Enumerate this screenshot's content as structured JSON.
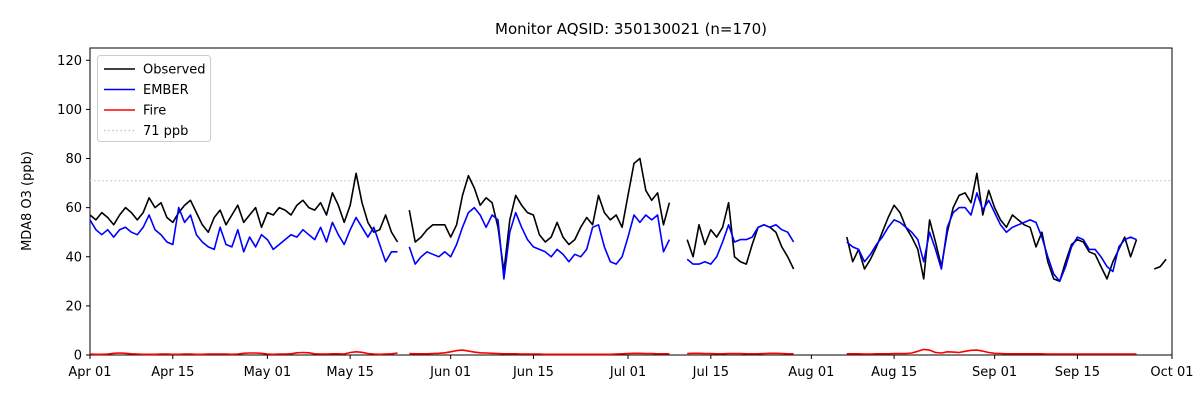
{
  "chart_data": {
    "type": "line",
    "title": "Monitor AQSID: 350130021 (n=170)",
    "xlabel": "",
    "ylabel": "MDA8 O3 (ppb)",
    "ylim": [
      0,
      125
    ],
    "yticks": [
      0,
      20,
      40,
      60,
      80,
      100,
      120
    ],
    "xlim_days": [
      0,
      183
    ],
    "xtick_labels": [
      "Apr 01",
      "Apr 15",
      "May 01",
      "May 15",
      "Jun 01",
      "Jun 15",
      "Jul 01",
      "Jul 15",
      "Aug 01",
      "Aug 15",
      "Sep 01",
      "Sep 15",
      "Oct 01"
    ],
    "xtick_days": [
      0,
      14,
      30,
      44,
      61,
      75,
      91,
      105,
      122,
      136,
      153,
      167,
      183
    ],
    "grid": false,
    "reference_line": {
      "label": "71 ppb",
      "value": 71,
      "color": "#c8c8c8",
      "style": "dotted"
    },
    "legend": {
      "position": "upper-left",
      "border_color": "#cccccc",
      "items": [
        {
          "label": "Observed",
          "color": "#000000",
          "style": "solid"
        },
        {
          "label": "EMBER",
          "color": "#0000ff",
          "style": "solid"
        },
        {
          "label": "Fire",
          "color": "#ff0000",
          "style": "solid"
        },
        {
          "label": "71 ppb",
          "color": "#c8c8c8",
          "style": "dotted"
        }
      ]
    },
    "x_start_date": "Apr 01",
    "x_end_date": "Oct 01",
    "n_points": 170,
    "series": [
      {
        "name": "Observed",
        "color": "#000000",
        "values": [
          57,
          55,
          58,
          56,
          53,
          57,
          60,
          58,
          55,
          58,
          64,
          60,
          62,
          56,
          54,
          58,
          61,
          63,
          58,
          53,
          50,
          56,
          59,
          53,
          57,
          61,
          54,
          57,
          60,
          52,
          58,
          57,
          60,
          59,
          57,
          61,
          63,
          60,
          59,
          62,
          57,
          66,
          61,
          54,
          61,
          74,
          62,
          54,
          50,
          51,
          57,
          50,
          46,
          null,
          59,
          46,
          48,
          51,
          53,
          53,
          53,
          48,
          53,
          65,
          73,
          68,
          61,
          64,
          62,
          52,
          34,
          55,
          65,
          61,
          58,
          57,
          49,
          46,
          48,
          54,
          48,
          45,
          47,
          52,
          56,
          53,
          65,
          58,
          55,
          57,
          52,
          65,
          78,
          80,
          67,
          63,
          66,
          53,
          62,
          null,
          null,
          47,
          40,
          53,
          45,
          51,
          48,
          52,
          62,
          40,
          38,
          37,
          45,
          52,
          53,
          52,
          50,
          44,
          40,
          35,
          null,
          null,
          null,
          null,
          null,
          null,
          null,
          null,
          48,
          38,
          43,
          35,
          39,
          44,
          50,
          56,
          61,
          58,
          52,
          48,
          43,
          31,
          55,
          46,
          36,
          50,
          60,
          65,
          66,
          62,
          74,
          57,
          67,
          60,
          55,
          52,
          57,
          55,
          53,
          52,
          44,
          50,
          38,
          31,
          30,
          38,
          45,
          47,
          46,
          42,
          41,
          36,
          31,
          38,
          43,
          48,
          40,
          47,
          null,
          null,
          35,
          36,
          39
        ]
      },
      {
        "name": "EMBER",
        "color": "#0000ff",
        "values": [
          55,
          51,
          49,
          51,
          48,
          51,
          52,
          50,
          49,
          52,
          57,
          51,
          49,
          46,
          45,
          60,
          54,
          57,
          49,
          46,
          44,
          43,
          52,
          45,
          44,
          51,
          42,
          48,
          44,
          49,
          47,
          43,
          45,
          47,
          49,
          48,
          51,
          49,
          47,
          52,
          46,
          54,
          49,
          45,
          51,
          56,
          52,
          48,
          52,
          45,
          38,
          42,
          42,
          null,
          44,
          37,
          40,
          42,
          41,
          40,
          42,
          40,
          45,
          52,
          58,
          60,
          57,
          52,
          57,
          55,
          31,
          50,
          58,
          52,
          47,
          44,
          43,
          42,
          40,
          43,
          41,
          38,
          41,
          40,
          43,
          52,
          53,
          44,
          38,
          37,
          40,
          48,
          57,
          54,
          57,
          55,
          57,
          42,
          47,
          null,
          null,
          39,
          37,
          37,
          38,
          37,
          40,
          46,
          53,
          46,
          47,
          47,
          48,
          52,
          53,
          52,
          53,
          51,
          50,
          46,
          null,
          null,
          null,
          null,
          null,
          null,
          null,
          null,
          46,
          44,
          43,
          38,
          41,
          45,
          48,
          52,
          55,
          54,
          52,
          50,
          47,
          38,
          50,
          43,
          35,
          52,
          58,
          60,
          60,
          57,
          66,
          59,
          63,
          58,
          53,
          50,
          52,
          53,
          54,
          55,
          54,
          48,
          40,
          33,
          30,
          36,
          44,
          48,
          47,
          43,
          43,
          40,
          36,
          34,
          44,
          47,
          48,
          47,
          null,
          null,
          null,
          null,
          null
        ]
      },
      {
        "name": "Fire",
        "color": "#ff0000",
        "values": [
          0.4,
          0.3,
          0.3,
          0.4,
          0.7,
          0.8,
          0.7,
          0.5,
          0.4,
          0.3,
          0.3,
          0.3,
          0.4,
          0.4,
          0.3,
          0.3,
          0.4,
          0.4,
          0.3,
          0.3,
          0.4,
          0.4,
          0.4,
          0.4,
          0.3,
          0.4,
          0.7,
          0.8,
          0.8,
          0.7,
          0.4,
          0.3,
          0.4,
          0.4,
          0.5,
          0.9,
          1.0,
          0.9,
          0.5,
          0.4,
          0.4,
          0.5,
          0.5,
          0.4,
          1.0,
          1.3,
          1.1,
          0.6,
          0.4,
          0.3,
          0.4,
          0.5,
          0.8,
          null,
          0.6,
          0.5,
          0.5,
          0.5,
          0.6,
          0.7,
          0.9,
          1.3,
          1.8,
          2.0,
          1.6,
          1.2,
          0.9,
          0.8,
          0.7,
          0.6,
          0.5,
          0.5,
          0.5,
          0.4,
          0.4,
          0.4,
          0.4,
          0.3,
          0.3,
          0.3,
          0.3,
          0.3,
          0.3,
          0.3,
          0.3,
          0.3,
          0.3,
          0.3,
          0.3,
          0.4,
          0.5,
          0.6,
          0.7,
          0.7,
          0.6,
          0.6,
          0.5,
          0.5,
          0.5,
          null,
          null,
          0.6,
          0.7,
          0.7,
          0.6,
          0.6,
          0.5,
          0.5,
          0.6,
          0.6,
          0.6,
          0.5,
          0.5,
          0.5,
          0.6,
          0.7,
          0.7,
          0.6,
          0.5,
          0.5,
          null,
          null,
          null,
          null,
          null,
          null,
          null,
          null,
          0.5,
          0.5,
          0.5,
          0.4,
          0.4,
          0.5,
          0.5,
          0.5,
          0.6,
          0.6,
          0.6,
          0.8,
          1.5,
          2.3,
          2.0,
          1.0,
          0.8,
          1.3,
          1.2,
          1.0,
          1.5,
          1.9,
          2.0,
          1.6,
          1.0,
          0.7,
          0.6,
          0.5,
          0.5,
          0.5,
          0.5,
          0.5,
          0.5,
          0.5,
          0.4,
          0.4,
          0.4,
          0.4,
          0.4,
          0.4,
          0.4,
          0.4,
          0.4,
          0.4,
          0.4,
          0.4,
          0.4,
          0.4,
          0.4,
          0.4,
          null,
          null,
          null,
          null,
          null
        ]
      }
    ]
  }
}
